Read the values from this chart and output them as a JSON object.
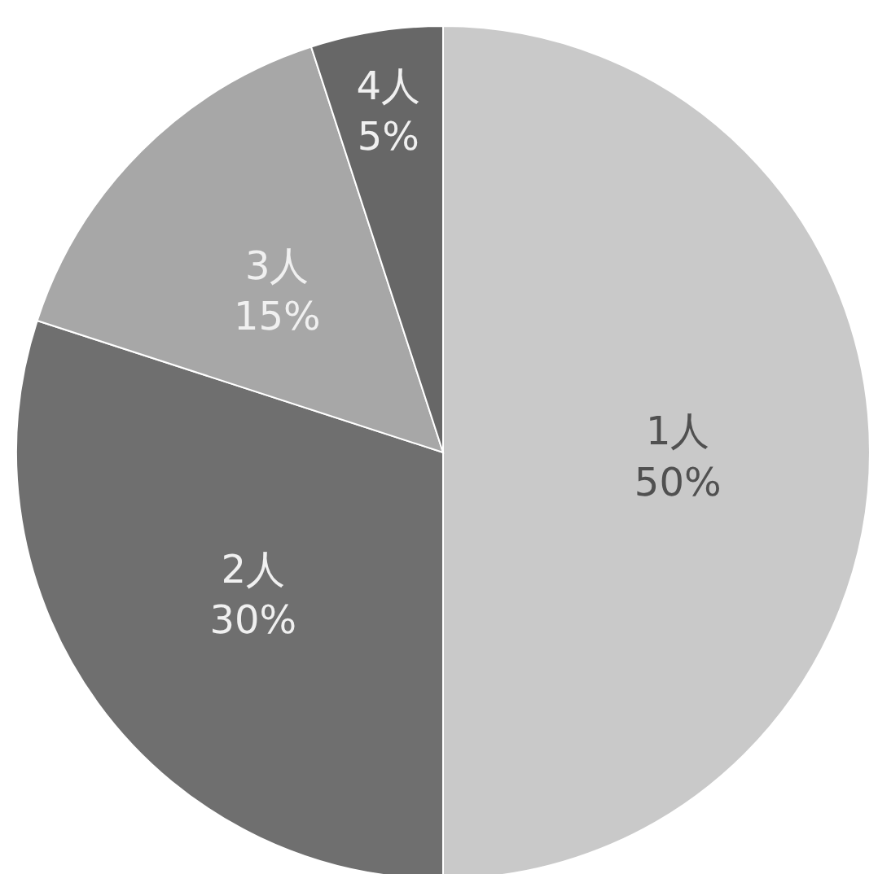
{
  "chart_data": {
    "type": "pie",
    "categories": [
      "1人",
      "2人",
      "3人",
      "4人"
    ],
    "values": [
      50,
      30,
      15,
      5
    ],
    "colors": [
      "#c9c9c9",
      "#6f6f6f",
      "#a7a7a7",
      "#676767"
    ],
    "value_labels": [
      "50%",
      "30%",
      "15%",
      "5%"
    ]
  }
}
